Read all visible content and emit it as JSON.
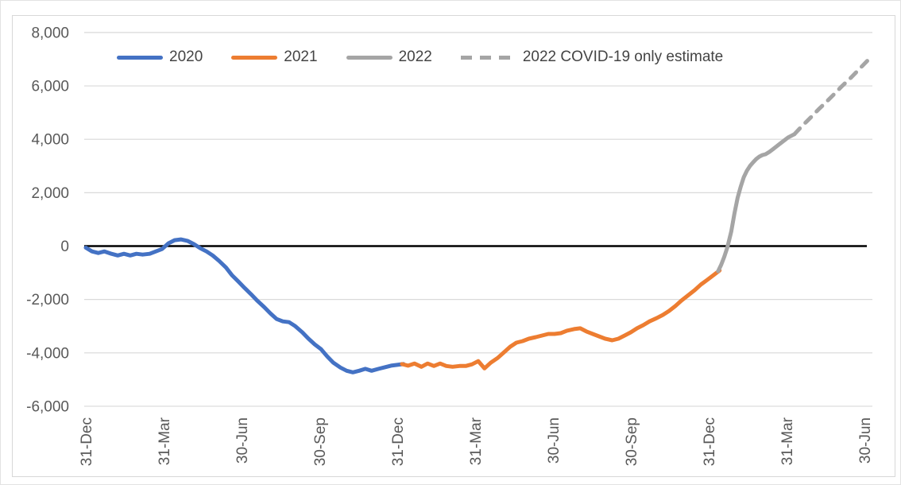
{
  "chart_data": {
    "type": "line",
    "title": "",
    "x_axis": {
      "tick_labels": [
        "31-Dec",
        "31-Mar",
        "30-Jun",
        "30-Sep",
        "31-Dec",
        "31-Mar",
        "30-Jun",
        "30-Sep",
        "31-Dec",
        "31-Mar",
        "30-Jun"
      ],
      "unit": "quarterly ticks; x values below are in quarter-units where 0 = first 31-Dec tick and 10 = last 30-Jun tick",
      "xlim": [
        0,
        10
      ],
      "label_rotation_deg": -90
    },
    "y_axis": {
      "tick_labels": [
        "8,000",
        "6,000",
        "4,000",
        "2,000",
        "0",
        "-2,000",
        "-4,000",
        "-6,000"
      ],
      "tick_values": [
        8000,
        6000,
        4000,
        2000,
        0,
        -2000,
        -4000,
        -6000
      ],
      "ylim": [
        -6000,
        8000
      ],
      "grid": true,
      "zero_line": true
    },
    "legend": {
      "position": "top",
      "items": [
        {
          "label": "2020",
          "color": "#4472C4",
          "dashed": false
        },
        {
          "label": "2021",
          "color": "#ED7D31",
          "dashed": false
        },
        {
          "label": "2022",
          "color": "#A5A5A5",
          "dashed": false
        },
        {
          "label": "2022 COVID-19 only estimate",
          "color": "#A5A5A5",
          "dashed": true
        }
      ]
    },
    "series": [
      {
        "name": "2020",
        "color": "#4472C4",
        "dashed": false,
        "points": [
          [
            0.0,
            -60
          ],
          [
            0.08,
            -200
          ],
          [
            0.16,
            -260
          ],
          [
            0.24,
            -200
          ],
          [
            0.33,
            -290
          ],
          [
            0.41,
            -350
          ],
          [
            0.49,
            -290
          ],
          [
            0.57,
            -350
          ],
          [
            0.65,
            -290
          ],
          [
            0.73,
            -320
          ],
          [
            0.82,
            -290
          ],
          [
            0.9,
            -200
          ],
          [
            0.98,
            -110
          ],
          [
            1.06,
            100
          ],
          [
            1.14,
            220
          ],
          [
            1.22,
            250
          ],
          [
            1.31,
            190
          ],
          [
            1.39,
            70
          ],
          [
            1.47,
            -80
          ],
          [
            1.55,
            -200
          ],
          [
            1.63,
            -350
          ],
          [
            1.71,
            -550
          ],
          [
            1.8,
            -800
          ],
          [
            1.88,
            -1100
          ],
          [
            1.96,
            -1330
          ],
          [
            2.04,
            -1570
          ],
          [
            2.12,
            -1800
          ],
          [
            2.2,
            -2040
          ],
          [
            2.29,
            -2280
          ],
          [
            2.37,
            -2520
          ],
          [
            2.45,
            -2730
          ],
          [
            2.53,
            -2820
          ],
          [
            2.61,
            -2850
          ],
          [
            2.69,
            -3000
          ],
          [
            2.78,
            -3230
          ],
          [
            2.86,
            -3470
          ],
          [
            2.94,
            -3680
          ],
          [
            3.02,
            -3860
          ],
          [
            3.1,
            -4130
          ],
          [
            3.18,
            -4370
          ],
          [
            3.27,
            -4550
          ],
          [
            3.35,
            -4670
          ],
          [
            3.43,
            -4730
          ],
          [
            3.51,
            -4670
          ],
          [
            3.59,
            -4600
          ],
          [
            3.67,
            -4670
          ],
          [
            3.76,
            -4600
          ],
          [
            3.84,
            -4540
          ],
          [
            3.92,
            -4480
          ],
          [
            4.0,
            -4450
          ],
          [
            4.08,
            -4420
          ]
        ]
      },
      {
        "name": "2021",
        "color": "#ED7D31",
        "dashed": false,
        "points": [
          [
            4.06,
            -4420
          ],
          [
            4.14,
            -4480
          ],
          [
            4.22,
            -4400
          ],
          [
            4.31,
            -4520
          ],
          [
            4.39,
            -4400
          ],
          [
            4.47,
            -4490
          ],
          [
            4.55,
            -4400
          ],
          [
            4.63,
            -4490
          ],
          [
            4.71,
            -4520
          ],
          [
            4.8,
            -4490
          ],
          [
            4.88,
            -4490
          ],
          [
            4.96,
            -4430
          ],
          [
            5.04,
            -4310
          ],
          [
            5.12,
            -4580
          ],
          [
            5.2,
            -4370
          ],
          [
            5.29,
            -4190
          ],
          [
            5.37,
            -3980
          ],
          [
            5.45,
            -3770
          ],
          [
            5.53,
            -3620
          ],
          [
            5.61,
            -3560
          ],
          [
            5.69,
            -3470
          ],
          [
            5.78,
            -3410
          ],
          [
            5.86,
            -3350
          ],
          [
            5.94,
            -3290
          ],
          [
            6.02,
            -3290
          ],
          [
            6.1,
            -3260
          ],
          [
            6.18,
            -3170
          ],
          [
            6.27,
            -3110
          ],
          [
            6.35,
            -3080
          ],
          [
            6.43,
            -3200
          ],
          [
            6.51,
            -3290
          ],
          [
            6.59,
            -3380
          ],
          [
            6.67,
            -3470
          ],
          [
            6.76,
            -3530
          ],
          [
            6.84,
            -3470
          ],
          [
            6.92,
            -3350
          ],
          [
            7.0,
            -3230
          ],
          [
            7.08,
            -3080
          ],
          [
            7.16,
            -2960
          ],
          [
            7.24,
            -2820
          ],
          [
            7.33,
            -2700
          ],
          [
            7.41,
            -2580
          ],
          [
            7.49,
            -2430
          ],
          [
            7.57,
            -2250
          ],
          [
            7.65,
            -2040
          ],
          [
            7.73,
            -1860
          ],
          [
            7.82,
            -1650
          ],
          [
            7.9,
            -1440
          ],
          [
            7.98,
            -1270
          ],
          [
            8.06,
            -1090
          ],
          [
            8.14,
            -910
          ]
        ]
      },
      {
        "name": "2022",
        "color": "#A5A5A5",
        "dashed": false,
        "points": [
          [
            8.12,
            -940
          ],
          [
            8.16,
            -700
          ],
          [
            8.2,
            -400
          ],
          [
            8.24,
            -45
          ],
          [
            8.29,
            550
          ],
          [
            8.33,
            1210
          ],
          [
            8.37,
            1800
          ],
          [
            8.41,
            2220
          ],
          [
            8.45,
            2580
          ],
          [
            8.49,
            2820
          ],
          [
            8.53,
            3000
          ],
          [
            8.57,
            3140
          ],
          [
            8.61,
            3260
          ],
          [
            8.65,
            3350
          ],
          [
            8.69,
            3410
          ],
          [
            8.73,
            3440
          ],
          [
            8.78,
            3530
          ],
          [
            8.82,
            3620
          ],
          [
            8.86,
            3710
          ],
          [
            8.9,
            3800
          ],
          [
            8.94,
            3890
          ],
          [
            8.98,
            3980
          ],
          [
            9.02,
            4070
          ],
          [
            9.06,
            4130
          ],
          [
            9.1,
            4190
          ]
        ]
      },
      {
        "name": "2022 COVID-19 only estimate",
        "color": "#A5A5A5",
        "dashed": true,
        "points": [
          [
            9.1,
            4190
          ],
          [
            9.2,
            4500
          ],
          [
            9.31,
            4820
          ],
          [
            9.41,
            5120
          ],
          [
            9.51,
            5400
          ],
          [
            9.61,
            5690
          ],
          [
            9.71,
            5990
          ],
          [
            9.82,
            6290
          ],
          [
            9.92,
            6590
          ],
          [
            10.04,
            6950
          ]
        ]
      }
    ],
    "style_colors": {
      "gridline": "#D9D9D9",
      "zero_line": "#000000",
      "axis_text": "#595959",
      "legend_text": "#444444",
      "frame_border": "#d8d8d8"
    }
  }
}
